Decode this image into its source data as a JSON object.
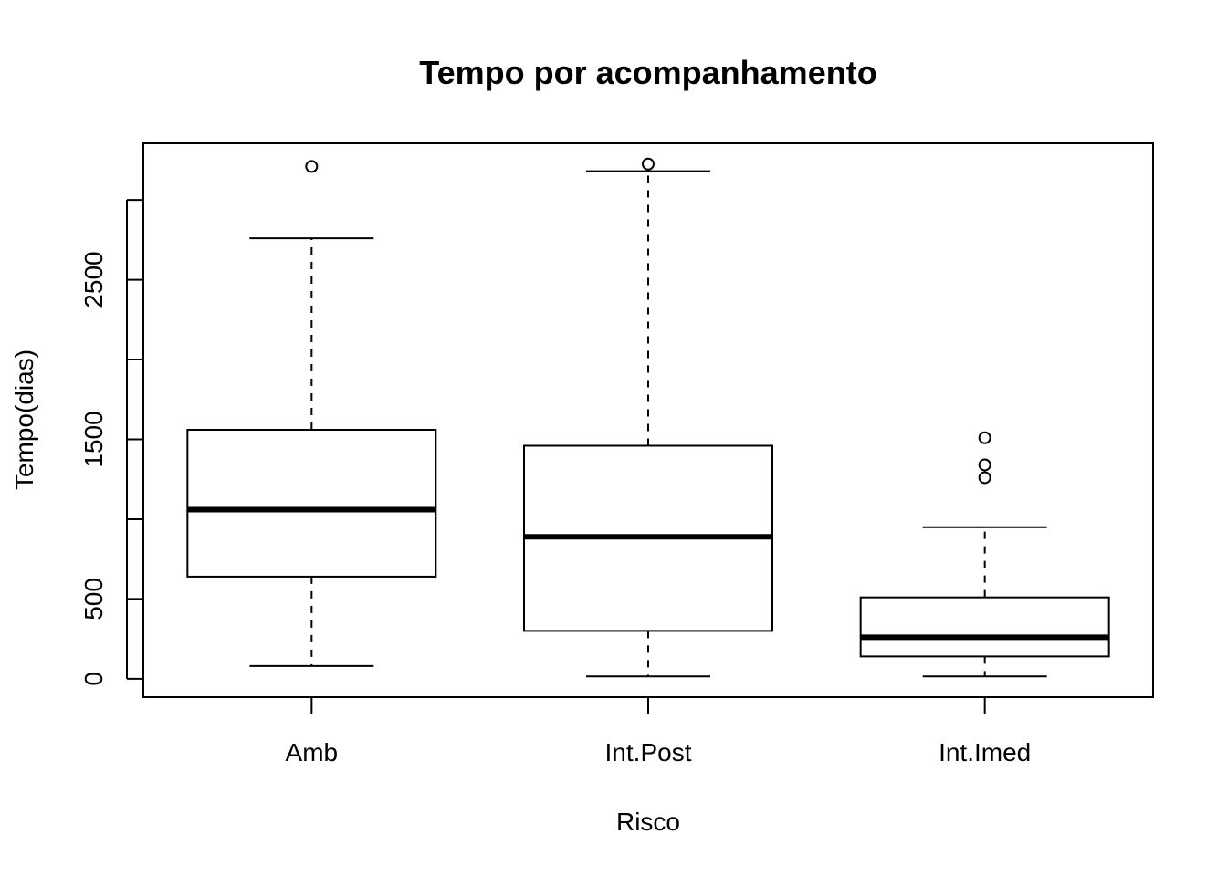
{
  "chart_data": {
    "type": "boxplot",
    "title": "Tempo por acompanhamento",
    "xlabel": "Risco",
    "ylabel": "Tempo(dias)",
    "categories": [
      "Amb",
      "Int.Post",
      "Int.Imed"
    ],
    "ylim": [
      -115,
      3355
    ],
    "y_ticks": [
      0,
      500,
      1000,
      1500,
      2000,
      2500,
      3000
    ],
    "y_tick_labels": [
      "0",
      "500",
      "",
      "1500",
      "",
      "2500",
      ""
    ],
    "boxes": [
      {
        "category": "Amb",
        "whisker_low": 80,
        "q1": 640,
        "median": 1060,
        "q3": 1560,
        "whisker_high": 2760,
        "outliers": [
          3210
        ]
      },
      {
        "category": "Int.Post",
        "whisker_low": 15,
        "q1": 300,
        "median": 890,
        "q3": 1460,
        "whisker_high": 3180,
        "outliers": [
          3225
        ]
      },
      {
        "category": "Int.Imed",
        "whisker_low": 15,
        "q1": 140,
        "median": 260,
        "q3": 510,
        "whisker_high": 950,
        "outliers": [
          1260,
          1340,
          1510
        ]
      }
    ],
    "grid": false,
    "legend": "none"
  }
}
